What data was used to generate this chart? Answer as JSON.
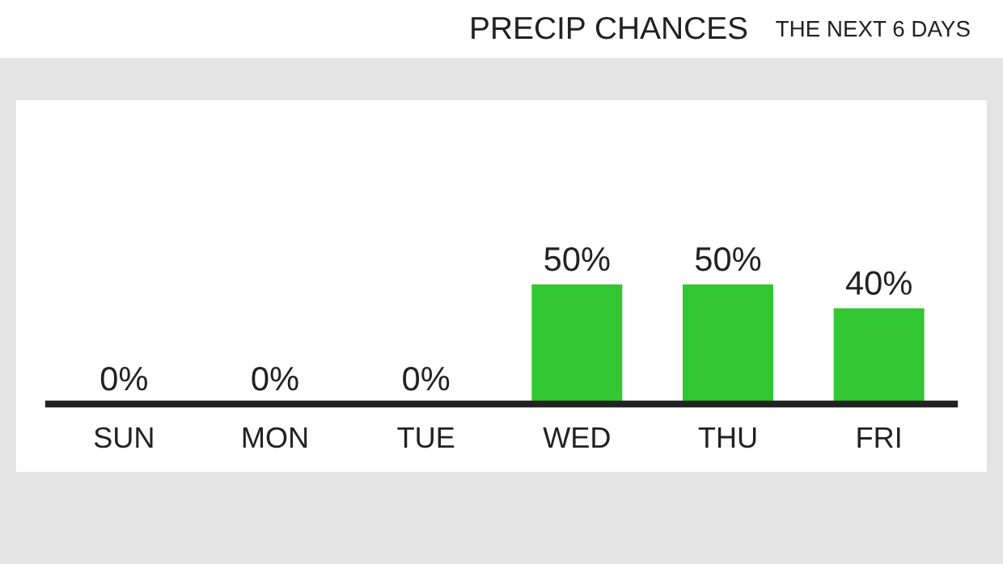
{
  "chart_data": {
    "type": "bar",
    "title": "PRECIP CHANCES",
    "subtitle": "THE NEXT 6 DAYS",
    "categories": [
      "SUN",
      "MON",
      "TUE",
      "WED",
      "THU",
      "FRI"
    ],
    "values": [
      0,
      0,
      0,
      50,
      50,
      40
    ],
    "value_labels": [
      "0%",
      "0%",
      "0%",
      "50%",
      "50%",
      "40%"
    ],
    "color": "#33c633",
    "grid": false,
    "legend": false
  }
}
